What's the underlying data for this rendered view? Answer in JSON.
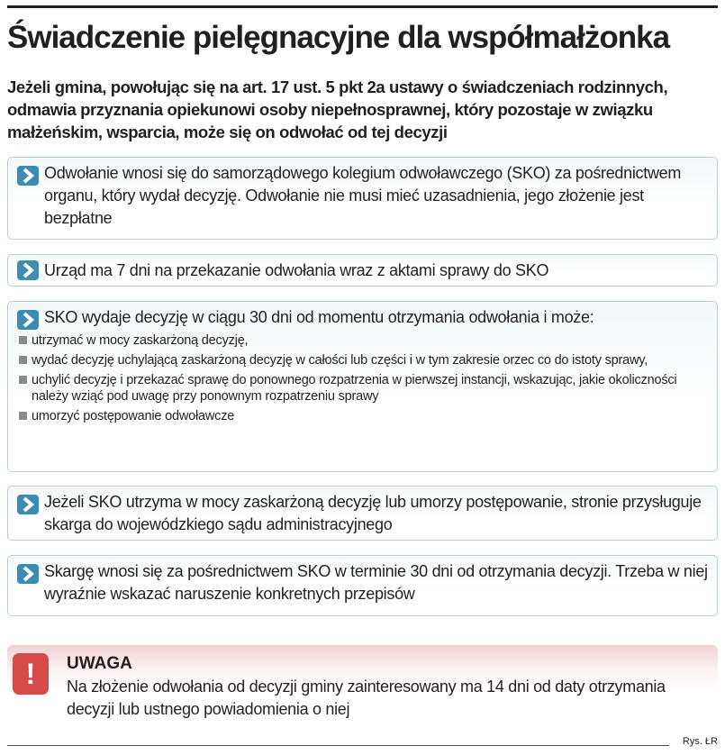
{
  "title": "Świadczenie pielęgnacyjne dla współmałżonka",
  "subtitle": "Jeżeli gmina, powołując się na art. 17 ust. 5 pkt 2a ustawy o świadczeniach rodzinnych, odmawia przyznania opiekunowi osoby niepełnosprawnej, który pozostaje w związku małżeńskim, wsparcia, może się on odwołać od tej decyzji",
  "icons": {
    "step": "chevron-right-icon",
    "warning": "exclamation-icon",
    "bullet": "square-bullet-icon"
  },
  "colors": {
    "accent": "#3b8db3",
    "warning": "#d64a4a"
  },
  "steps": [
    {
      "text": "Odwołanie wnosi się do samorządowego kolegium odwoławczego (SKO) za pośrednictwem organu, który wydał decyzję. Odwołanie nie musi mieć uzasadnienia, jego złożenie jest bezpłatne"
    },
    {
      "text": "Urząd ma 7 dni na przekazanie odwołania wraz z aktami sprawy do SKO"
    },
    {
      "text": "SKO wydaje decyzję w ciągu 30 dni od momentu otrzymania odwołania i może:",
      "bullets": [
        "utrzymać w mocy zaskarżoną decyzję,",
        "wydać decyzję uchylającą zaskarżoną decyzję w całości lub części i w tym zakresie orzec co do istoty sprawy,",
        "uchylić decyzję i przekazać sprawę do ponownego rozpatrzenia w pierwszej instancji, wskazując, jakie okoliczności należy wziąć pod uwagę przy ponownym rozpatrzeniu sprawy",
        "umorzyć postępowanie odwoławcze"
      ]
    },
    {
      "text": "Jeżeli SKO utrzyma w mocy zaskarżoną decyzję lub umorzy postępowanie, stronie przysługuje skarga do wojewódzkiego sądu administracyjnego"
    },
    {
      "text": "Skargę wnosi się za pośrednictwem SKO w terminie 30 dni od otrzymania decyzji. Trzeba w niej wyraźnie wskazać naruszenie konkretnych przepisów"
    }
  ],
  "warning": {
    "symbol": "!",
    "title": "UWAGA",
    "text": "Na złożenie odwołania od decyzji gminy zainteresowany ma 14 dni od daty otrzymania decyzji lub ustnego powiadomienia o niej"
  },
  "credit": "Rys. ŁR"
}
